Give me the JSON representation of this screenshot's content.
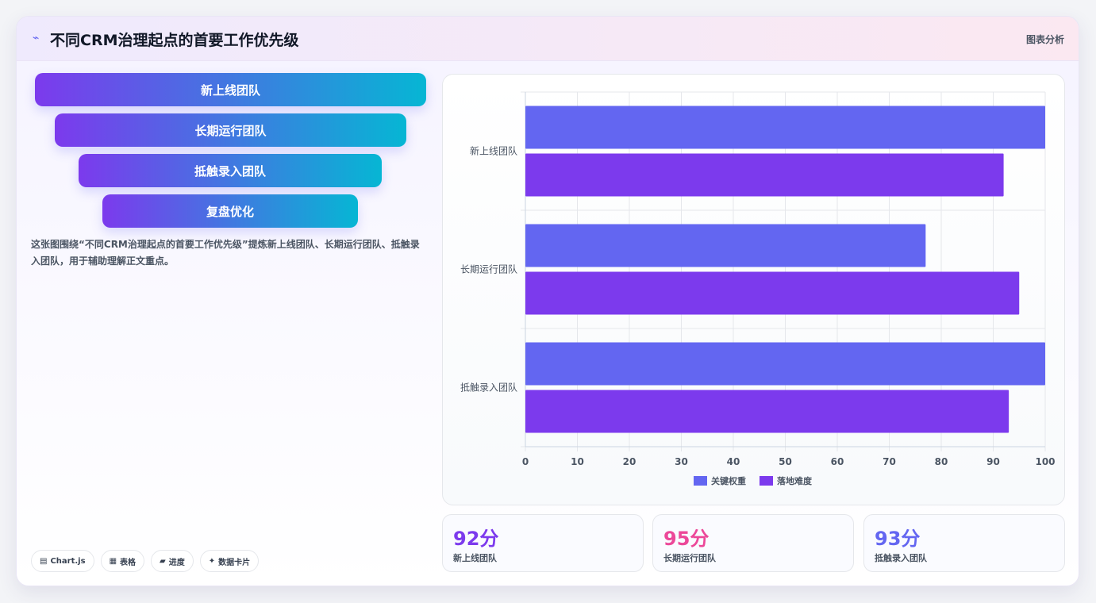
{
  "header": {
    "icon": "chart-spark-icon",
    "title": "不同CRM治理起点的首要工作优先级",
    "tag": "图表分析"
  },
  "funnel": [
    "新上线团队",
    "长期运行团队",
    "抵触录入团队",
    "复盘优化"
  ],
  "description": "这张图围绕“不同CRM治理起点的首要工作优先级”提炼新上线团队、长期运行团队、抵触录入团队，用于辅助理解正文重点。",
  "chips": [
    {
      "icon": "chart-icon",
      "glyph": "▤",
      "label": "Chart.js"
    },
    {
      "icon": "table-icon",
      "glyph": "▦",
      "label": "表格"
    },
    {
      "icon": "progress-icon",
      "glyph": "▰",
      "label": "进度"
    },
    {
      "icon": "sparkle-icon",
      "glyph": "✦",
      "label": "数据卡片"
    }
  ],
  "chart_data": {
    "type": "bar",
    "orientation": "horizontal",
    "categories": [
      "新上线团队",
      "长期运行团队",
      "抵触录入团队"
    ],
    "series": [
      {
        "name": "关键权重",
        "values": [
          100,
          77,
          100
        ],
        "color": "#6366f1"
      },
      {
        "name": "落地难度",
        "values": [
          92,
          95,
          93
        ],
        "color": "#7c3aed"
      }
    ],
    "xlim": [
      0,
      100
    ],
    "xticks": [
      0,
      10,
      20,
      30,
      40,
      50,
      60,
      70,
      80,
      90,
      100
    ],
    "grid": true,
    "legend": "bottom"
  },
  "stats": [
    {
      "value": "92分",
      "label": "新上线团队",
      "color": "#7c3aed"
    },
    {
      "value": "95分",
      "label": "长期运行团队",
      "color": "#ec4899"
    },
    {
      "value": "93分",
      "label": "抵触录入团队",
      "color": "#6366f1"
    }
  ]
}
